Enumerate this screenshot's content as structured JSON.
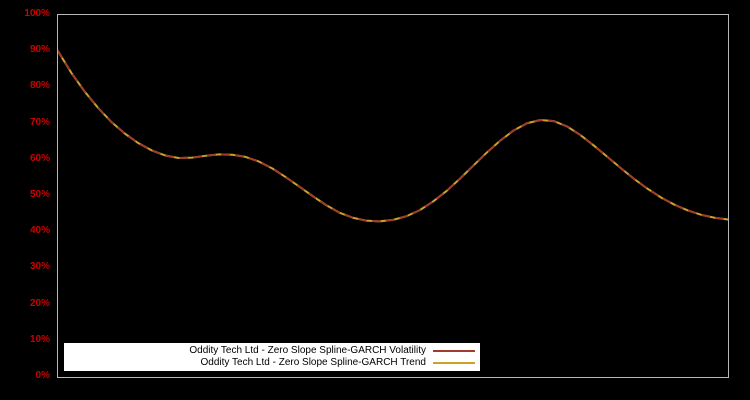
{
  "window": {
    "background": "#000000"
  },
  "chart_data": {
    "type": "line",
    "title": "",
    "xlabel": "",
    "ylabel": "",
    "ylim": [
      0,
      100
    ],
    "grid": false,
    "plot_background": "#000000",
    "border_color": "#b8b8b8",
    "axis_label_color": "#cc0000",
    "y_ticks": [
      0,
      10,
      20,
      30,
      40,
      50,
      60,
      70,
      80,
      90,
      100
    ],
    "y_tick_suffix": "%",
    "legend_position": "bottom-left-inside",
    "legend_background": "#ffffff",
    "series": [
      {
        "name": "Oddity Tech Ltd - Zero Slope Spline-GARCH Volatility",
        "color": "#a23b2e",
        "dash": "7 7",
        "points": [
          [
            0.0,
            90.0
          ],
          [
            0.02,
            84.0
          ],
          [
            0.04,
            78.8
          ],
          [
            0.06,
            74.3
          ],
          [
            0.08,
            70.4
          ],
          [
            0.1,
            67.2
          ],
          [
            0.12,
            64.6
          ],
          [
            0.14,
            62.6
          ],
          [
            0.16,
            61.2
          ],
          [
            0.18,
            60.5
          ],
          [
            0.2,
            60.6
          ],
          [
            0.22,
            61.1
          ],
          [
            0.24,
            61.5
          ],
          [
            0.26,
            61.4
          ],
          [
            0.28,
            60.8
          ],
          [
            0.3,
            59.5
          ],
          [
            0.32,
            57.6
          ],
          [
            0.34,
            55.2
          ],
          [
            0.36,
            52.6
          ],
          [
            0.38,
            50.0
          ],
          [
            0.4,
            47.5
          ],
          [
            0.42,
            45.4
          ],
          [
            0.44,
            44.0
          ],
          [
            0.46,
            43.2
          ],
          [
            0.48,
            43.0
          ],
          [
            0.5,
            43.4
          ],
          [
            0.52,
            44.4
          ],
          [
            0.54,
            46.1
          ],
          [
            0.56,
            48.5
          ],
          [
            0.58,
            51.4
          ],
          [
            0.6,
            54.8
          ],
          [
            0.62,
            58.4
          ],
          [
            0.64,
            62.0
          ],
          [
            0.66,
            65.3
          ],
          [
            0.68,
            68.1
          ],
          [
            0.7,
            70.1
          ],
          [
            0.72,
            71.0
          ],
          [
            0.74,
            70.7
          ],
          [
            0.76,
            69.2
          ],
          [
            0.78,
            66.8
          ],
          [
            0.8,
            63.9
          ],
          [
            0.82,
            60.8
          ],
          [
            0.84,
            57.7
          ],
          [
            0.86,
            54.7
          ],
          [
            0.88,
            52.0
          ],
          [
            0.9,
            49.6
          ],
          [
            0.92,
            47.6
          ],
          [
            0.94,
            46.0
          ],
          [
            0.96,
            44.8
          ],
          [
            0.98,
            44.0
          ],
          [
            1.0,
            43.5
          ]
        ]
      },
      {
        "name": "Oddity Tech Ltd - Zero Slope Spline-GARCH Trend",
        "color": "#c9a227",
        "dash": "",
        "points": [
          [
            0.0,
            90.0
          ],
          [
            0.02,
            84.0
          ],
          [
            0.04,
            78.8
          ],
          [
            0.06,
            74.3
          ],
          [
            0.08,
            70.4
          ],
          [
            0.1,
            67.2
          ],
          [
            0.12,
            64.6
          ],
          [
            0.14,
            62.6
          ],
          [
            0.16,
            61.2
          ],
          [
            0.18,
            60.5
          ],
          [
            0.2,
            60.6
          ],
          [
            0.22,
            61.1
          ],
          [
            0.24,
            61.5
          ],
          [
            0.26,
            61.4
          ],
          [
            0.28,
            60.8
          ],
          [
            0.3,
            59.5
          ],
          [
            0.32,
            57.6
          ],
          [
            0.34,
            55.2
          ],
          [
            0.36,
            52.6
          ],
          [
            0.38,
            50.0
          ],
          [
            0.4,
            47.5
          ],
          [
            0.42,
            45.4
          ],
          [
            0.44,
            44.0
          ],
          [
            0.46,
            43.2
          ],
          [
            0.48,
            43.0
          ],
          [
            0.5,
            43.4
          ],
          [
            0.52,
            44.4
          ],
          [
            0.54,
            46.1
          ],
          [
            0.56,
            48.5
          ],
          [
            0.58,
            51.4
          ],
          [
            0.6,
            54.8
          ],
          [
            0.62,
            58.4
          ],
          [
            0.64,
            62.0
          ],
          [
            0.66,
            65.3
          ],
          [
            0.68,
            68.1
          ],
          [
            0.7,
            70.1
          ],
          [
            0.72,
            71.0
          ],
          [
            0.74,
            70.7
          ],
          [
            0.76,
            69.2
          ],
          [
            0.78,
            66.8
          ],
          [
            0.8,
            63.9
          ],
          [
            0.82,
            60.8
          ],
          [
            0.84,
            57.7
          ],
          [
            0.86,
            54.7
          ],
          [
            0.88,
            52.0
          ],
          [
            0.9,
            49.6
          ],
          [
            0.92,
            47.6
          ],
          [
            0.94,
            46.0
          ],
          [
            0.96,
            44.8
          ],
          [
            0.98,
            44.0
          ],
          [
            1.0,
            43.5
          ]
        ]
      }
    ]
  }
}
